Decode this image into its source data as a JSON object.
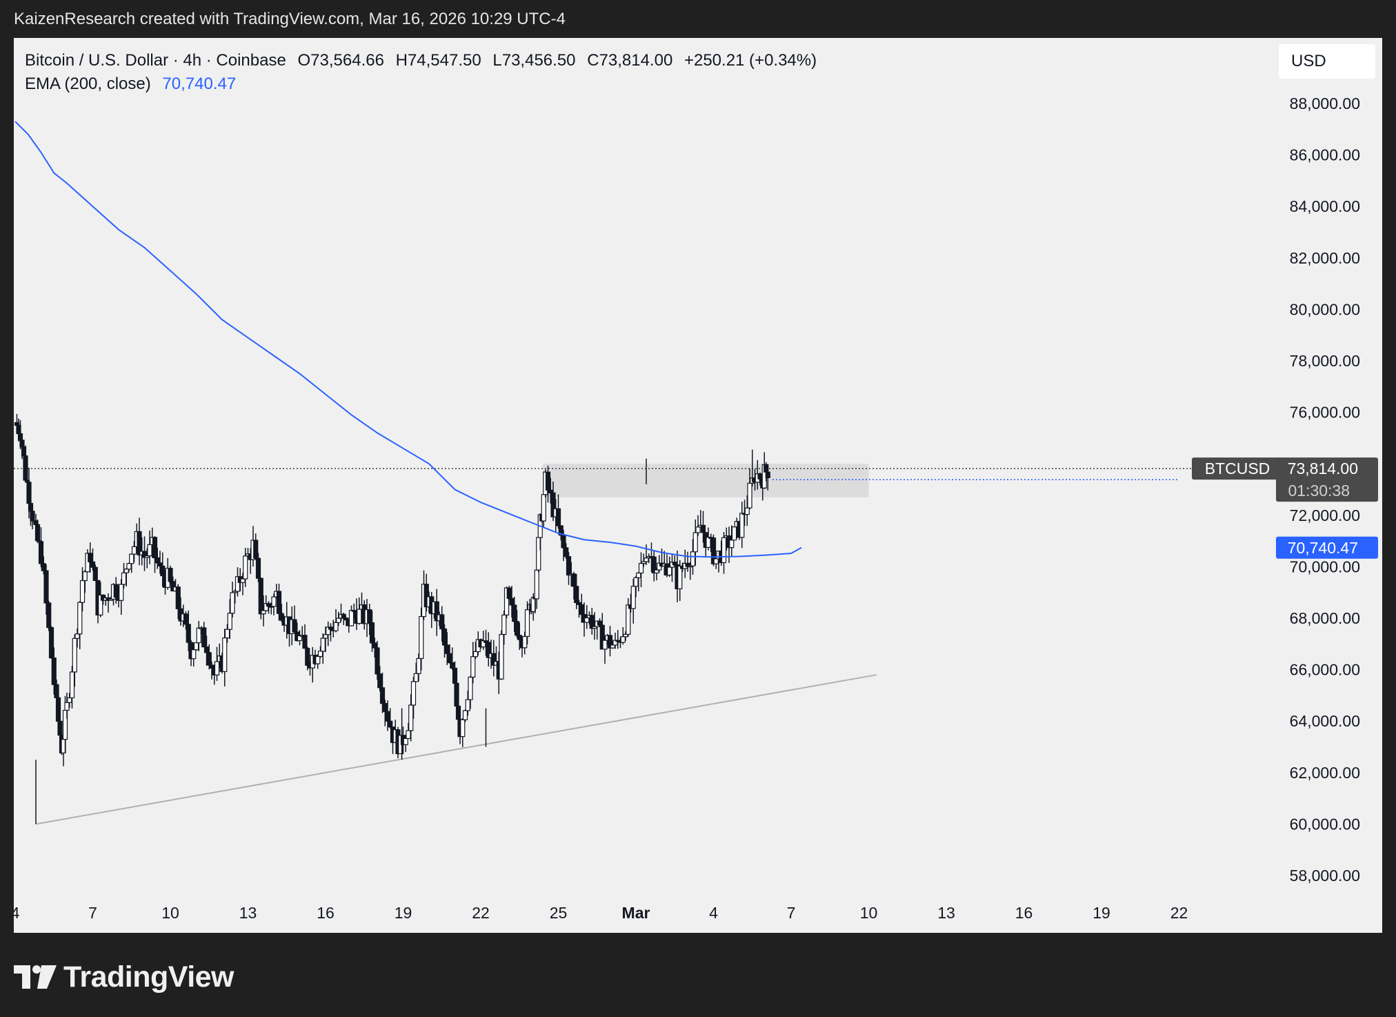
{
  "header": {
    "attribution": "KaizenResearch created with TradingView.com, Mar 16, 2026 10:29 UTC-4"
  },
  "legend": {
    "symbol_line": "Bitcoin / U.S. Dollar · 4h · Coinbase",
    "open": "O73,564.66",
    "high": "H74,547.50",
    "low": "L73,456.50",
    "close": "C73,814.00",
    "change": "+250.21 (+0.34%)",
    "ema_label": "EMA (200, close)",
    "ema_value": "70,740.47"
  },
  "currency": "USD",
  "footer": {
    "logo_text": "TradingView"
  },
  "colors": {
    "background": "#f0f0f0",
    "candle": "#131722",
    "ema": "#2962ff",
    "trendline": "#b0b0b0",
    "zone": "#dcdcdc"
  },
  "chart_data": {
    "type": "candlestick",
    "symbol": "BTCUSD",
    "interval": "4h",
    "exchange": "Coinbase",
    "x_tick_labels": [
      "4",
      "7",
      "10",
      "13",
      "16",
      "19",
      "22",
      "25",
      "Mar",
      "4",
      "7",
      "10",
      "13",
      "16",
      "19",
      "22"
    ],
    "y_tick_labels": [
      "88,000.00",
      "86,000.00",
      "84,000.00",
      "82,000.00",
      "80,000.00",
      "78,000.00",
      "76,000.00",
      "72,000.00",
      "70,000.00",
      "68,000.00",
      "66,000.00",
      "64,000.00",
      "62,000.00",
      "60,000.00",
      "58,000.00"
    ],
    "y_ticks": [
      88000,
      86000,
      84000,
      82000,
      80000,
      78000,
      76000,
      72000,
      70000,
      68000,
      66000,
      64000,
      62000,
      60000,
      58000
    ],
    "ylim": [
      57000,
      90000
    ],
    "grid": false,
    "price_label": {
      "symbol": "BTCUSD",
      "price": "73,814.00",
      "countdown": "01:30:38",
      "value": 73814
    },
    "ema_label": {
      "text": "70,740.47",
      "value": 70740.47
    },
    "ema_series": [
      {
        "day": 1.0,
        "value": 87300
      },
      {
        "day": 1.5,
        "value": 86800
      },
      {
        "day": 2.0,
        "value": 86100
      },
      {
        "day": 2.5,
        "value": 85300
      },
      {
        "day": 3.0,
        "value": 84900
      },
      {
        "day": 4.0,
        "value": 84000
      },
      {
        "day": 5.0,
        "value": 83100
      },
      {
        "day": 6.0,
        "value": 82400
      },
      {
        "day": 7.0,
        "value": 81500
      },
      {
        "day": 8.0,
        "value": 80600
      },
      {
        "day": 9.0,
        "value": 79600
      },
      {
        "day": 10.0,
        "value": 78900
      },
      {
        "day": 11.0,
        "value": 78200
      },
      {
        "day": 12.0,
        "value": 77500
      },
      {
        "day": 13.0,
        "value": 76700
      },
      {
        "day": 14.0,
        "value": 75900
      },
      {
        "day": 15.0,
        "value": 75200
      },
      {
        "day": 16.0,
        "value": 74600
      },
      {
        "day": 17.0,
        "value": 74000
      },
      {
        "day": 17.5,
        "value": 73500
      },
      {
        "day": 18.0,
        "value": 73000
      },
      {
        "day": 19.0,
        "value": 72500
      },
      {
        "day": 20.0,
        "value": 72100
      },
      {
        "day": 21.0,
        "value": 71700
      },
      {
        "day": 22.0,
        "value": 71300
      },
      {
        "day": 23.0,
        "value": 71050
      },
      {
        "day": 24.0,
        "value": 70950
      },
      {
        "day": 25.0,
        "value": 70800
      },
      {
        "day": 26.0,
        "value": 70550
      },
      {
        "day": 27.0,
        "value": 70400
      },
      {
        "day": 28.0,
        "value": 70380
      },
      {
        "day": 29.0,
        "value": 70400
      },
      {
        "day": 30.0,
        "value": 70450
      },
      {
        "day": 31.0,
        "value": 70520
      },
      {
        "day": 31.4,
        "value": 70740
      }
    ],
    "price_path": [
      {
        "day": 1.0,
        "value": 75600
      },
      {
        "day": 1.2,
        "value": 75300
      },
      {
        "day": 1.4,
        "value": 73600
      },
      {
        "day": 1.6,
        "value": 72500
      },
      {
        "day": 1.8,
        "value": 71200
      },
      {
        "day": 2.0,
        "value": 70500
      },
      {
        "day": 2.3,
        "value": 67500
      },
      {
        "day": 2.6,
        "value": 64500
      },
      {
        "day": 2.8,
        "value": 63000
      },
      {
        "day": 3.0,
        "value": 64500
      },
      {
        "day": 3.3,
        "value": 67000
      },
      {
        "day": 3.6,
        "value": 69500
      },
      {
        "day": 3.9,
        "value": 70500
      },
      {
        "day": 4.2,
        "value": 68500
      },
      {
        "day": 4.5,
        "value": 68800
      },
      {
        "day": 4.8,
        "value": 69200
      },
      {
        "day": 5.1,
        "value": 69100
      },
      {
        "day": 5.4,
        "value": 70500
      },
      {
        "day": 5.7,
        "value": 71000
      },
      {
        "day": 6.0,
        "value": 70400
      },
      {
        "day": 6.3,
        "value": 70700
      },
      {
        "day": 6.6,
        "value": 69800
      },
      {
        "day": 6.9,
        "value": 69500
      },
      {
        "day": 7.2,
        "value": 68800
      },
      {
        "day": 7.5,
        "value": 67800
      },
      {
        "day": 7.8,
        "value": 66800
      },
      {
        "day": 8.1,
        "value": 67400
      },
      {
        "day": 8.4,
        "value": 67000
      },
      {
        "day": 8.7,
        "value": 65800
      },
      {
        "day": 9.0,
        "value": 66300
      },
      {
        "day": 9.3,
        "value": 68500
      },
      {
        "day": 9.6,
        "value": 69200
      },
      {
        "day": 9.9,
        "value": 70200
      },
      {
        "day": 10.2,
        "value": 70800
      },
      {
        "day": 10.5,
        "value": 68400
      },
      {
        "day": 10.8,
        "value": 68500
      },
      {
        "day": 11.1,
        "value": 68900
      },
      {
        "day": 11.4,
        "value": 68100
      },
      {
        "day": 11.7,
        "value": 67500
      },
      {
        "day": 12.0,
        "value": 67200
      },
      {
        "day": 12.3,
        "value": 66400
      },
      {
        "day": 12.6,
        "value": 66600
      },
      {
        "day": 12.9,
        "value": 67300
      },
      {
        "day": 13.2,
        "value": 67600
      },
      {
        "day": 13.5,
        "value": 68000
      },
      {
        "day": 13.8,
        "value": 67700
      },
      {
        "day": 14.1,
        "value": 68300
      },
      {
        "day": 14.4,
        "value": 68100
      },
      {
        "day": 14.7,
        "value": 67900
      },
      {
        "day": 15.0,
        "value": 66200
      },
      {
        "day": 15.3,
        "value": 64600
      },
      {
        "day": 15.6,
        "value": 63500
      },
      {
        "day": 15.9,
        "value": 63000
      },
      {
        "day": 16.2,
        "value": 64000
      },
      {
        "day": 16.5,
        "value": 65700
      },
      {
        "day": 16.8,
        "value": 68900
      },
      {
        "day": 17.1,
        "value": 68400
      },
      {
        "day": 17.4,
        "value": 67900
      },
      {
        "day": 17.7,
        "value": 66400
      },
      {
        "day": 18.0,
        "value": 65500
      },
      {
        "day": 18.2,
        "value": 63700
      },
      {
        "day": 18.5,
        "value": 65200
      },
      {
        "day": 18.8,
        "value": 66700
      },
      {
        "day": 19.1,
        "value": 67000
      },
      {
        "day": 19.4,
        "value": 66400
      },
      {
        "day": 19.7,
        "value": 66000
      },
      {
        "day": 20.0,
        "value": 68800
      },
      {
        "day": 20.3,
        "value": 67900
      },
      {
        "day": 20.6,
        "value": 67300
      },
      {
        "day": 20.9,
        "value": 68300
      },
      {
        "day": 21.1,
        "value": 69200
      },
      {
        "day": 21.3,
        "value": 71600
      },
      {
        "day": 21.5,
        "value": 73300
      },
      {
        "day": 21.8,
        "value": 72300
      },
      {
        "day": 22.1,
        "value": 71000
      },
      {
        "day": 22.4,
        "value": 70000
      },
      {
        "day": 22.7,
        "value": 68600
      },
      {
        "day": 23.0,
        "value": 68200
      },
      {
        "day": 23.3,
        "value": 67900
      },
      {
        "day": 23.6,
        "value": 67300
      },
      {
        "day": 23.9,
        "value": 67100
      },
      {
        "day": 24.2,
        "value": 66900
      },
      {
        "day": 24.5,
        "value": 67500
      },
      {
        "day": 24.8,
        "value": 68400
      },
      {
        "day": 25.1,
        "value": 69600
      },
      {
        "day": 25.4,
        "value": 70700
      },
      {
        "day": 25.7,
        "value": 70200
      },
      {
        "day": 26.0,
        "value": 69900
      },
      {
        "day": 26.3,
        "value": 70200
      },
      {
        "day": 26.6,
        "value": 69500
      },
      {
        "day": 26.9,
        "value": 70200
      },
      {
        "day": 27.2,
        "value": 70600
      },
      {
        "day": 27.5,
        "value": 71600
      },
      {
        "day": 27.8,
        "value": 70900
      },
      {
        "day": 28.1,
        "value": 70300
      },
      {
        "day": 28.4,
        "value": 70700
      },
      {
        "day": 28.7,
        "value": 71100
      },
      {
        "day": 29.0,
        "value": 71500
      },
      {
        "day": 29.3,
        "value": 72500
      },
      {
        "day": 29.6,
        "value": 73600
      },
      {
        "day": 29.9,
        "value": 73500
      },
      {
        "day": 30.1,
        "value": 73814
      }
    ],
    "trendline": {
      "from": {
        "day": 1.8,
        "value": 60000
      },
      "to": {
        "day": 34.3,
        "value": 65800
      }
    },
    "resistance_zone": {
      "day_from": 21.4,
      "day_to": 34.0,
      "top": 74000,
      "bottom": 72700
    }
  }
}
